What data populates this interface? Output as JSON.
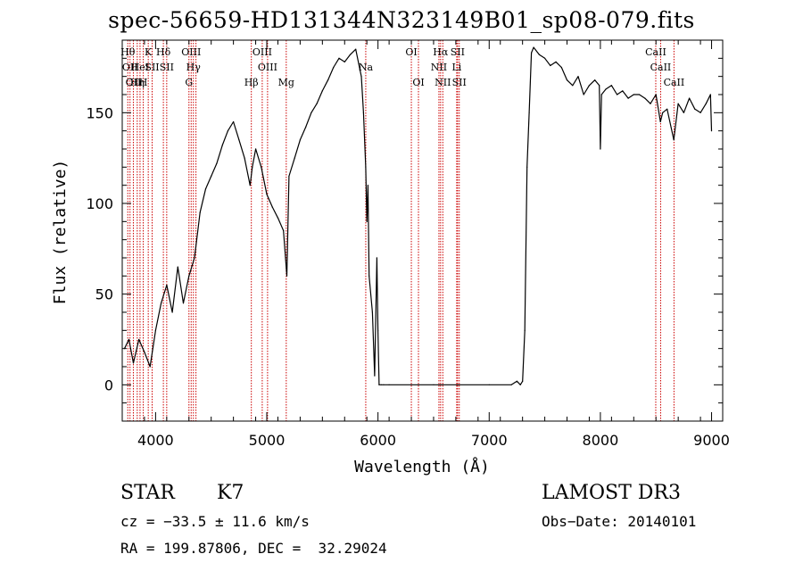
{
  "chart_data": {
    "type": "line",
    "title": "spec-56659-HD131344N323149B01_sp08-079.fits",
    "xlabel": "Wavelength (Å)",
    "ylabel": "Flux (relative)",
    "xlim": [
      3700,
      9100
    ],
    "ylim": [
      -20,
      190
    ],
    "xticks": [
      4000,
      5000,
      6000,
      7000,
      8000,
      9000
    ],
    "yticks": [
      0,
      50,
      100,
      150
    ],
    "series": [
      {
        "name": "flux",
        "x": [
          3720,
          3760,
          3800,
          3850,
          3900,
          3950,
          4000,
          4050,
          4100,
          4150,
          4200,
          4250,
          4300,
          4350,
          4400,
          4450,
          4500,
          4550,
          4600,
          4650,
          4700,
          4750,
          4800,
          4850,
          4870,
          4900,
          4950,
          5000,
          5050,
          5100,
          5150,
          5180,
          5200,
          5250,
          5300,
          5350,
          5400,
          5450,
          5500,
          5550,
          5600,
          5650,
          5700,
          5750,
          5800,
          5850,
          5870,
          5890,
          5900,
          5910,
          5920,
          5950,
          5970,
          5990,
          6000,
          6010,
          6030,
          6050,
          6100,
          6500,
          7000,
          7200,
          7250,
          7280,
          7300,
          7320,
          7340,
          7360,
          7380,
          7400,
          7450,
          7500,
          7550,
          7600,
          7650,
          7700,
          7750,
          7800,
          7850,
          7900,
          7950,
          7990,
          8000,
          8010,
          8050,
          8100,
          8150,
          8200,
          8250,
          8300,
          8350,
          8400,
          8450,
          8500,
          8540,
          8560,
          8600,
          8660,
          8700,
          8750,
          8800,
          8850,
          8900,
          8950,
          8990,
          9000
        ],
        "values": [
          20,
          25,
          12,
          25,
          18,
          10,
          30,
          45,
          55,
          40,
          65,
          45,
          60,
          70,
          95,
          108,
          115,
          122,
          132,
          140,
          145,
          135,
          125,
          110,
          120,
          130,
          120,
          105,
          98,
          92,
          85,
          60,
          115,
          125,
          135,
          142,
          150,
          155,
          162,
          168,
          175,
          180,
          178,
          182,
          185,
          170,
          150,
          120,
          90,
          110,
          60,
          40,
          5,
          70,
          30,
          0,
          0,
          0,
          0,
          0,
          0,
          0,
          2,
          0,
          2,
          30,
          120,
          150,
          183,
          186,
          182,
          180,
          176,
          178,
          175,
          168,
          165,
          170,
          160,
          165,
          168,
          165,
          130,
          160,
          163,
          165,
          160,
          162,
          158,
          160,
          160,
          158,
          155,
          160,
          145,
          150,
          152,
          135,
          155,
          150,
          158,
          152,
          150,
          155,
          160,
          140
        ]
      }
    ],
    "lines": [
      {
        "x": 3750,
        "row": 1,
        "label": "Hθ"
      },
      {
        "x": 3770,
        "row": 2,
        "label": "OII"
      },
      {
        "x": 3800,
        "row": 3,
        "label": "OII"
      },
      {
        "x": 3835,
        "row": 3,
        "label": "Hη"
      },
      {
        "x": 3860,
        "row": 2,
        "label": "HeI"
      },
      {
        "x": 3889,
        "row": 3,
        "label": "H"
      },
      {
        "x": 3934,
        "row": 1,
        "label": "K"
      },
      {
        "x": 3969,
        "row": 2,
        "label": "SII"
      },
      {
        "x": 4070,
        "row": 1,
        "label": "Hδ"
      },
      {
        "x": 4100,
        "row": 2,
        "label": "SII"
      },
      {
        "x": 4300,
        "row": 3,
        "label": "G"
      },
      {
        "x": 4320,
        "row": 1,
        "label": "OIII"
      },
      {
        "x": 4340,
        "row": 2,
        "label": "Hγ"
      },
      {
        "x": 4363,
        "row": 0,
        "label": ""
      },
      {
        "x": 4861,
        "row": 3,
        "label": "Hβ"
      },
      {
        "x": 4959,
        "row": 1,
        "label": "OIII"
      },
      {
        "x": 5007,
        "row": 2,
        "label": "OIII"
      },
      {
        "x": 5175,
        "row": 3,
        "label": "Mg"
      },
      {
        "x": 5890,
        "row": 2,
        "label": "Na"
      },
      {
        "x": 6300,
        "row": 1,
        "label": "OI"
      },
      {
        "x": 6364,
        "row": 3,
        "label": "OI"
      },
      {
        "x": 6548,
        "row": 2,
        "label": "NII"
      },
      {
        "x": 6563,
        "row": 1,
        "label": "Hα"
      },
      {
        "x": 6583,
        "row": 3,
        "label": "NII"
      },
      {
        "x": 6708,
        "row": 2,
        "label": "Li"
      },
      {
        "x": 6716,
        "row": 1,
        "label": "SII"
      },
      {
        "x": 6731,
        "row": 3,
        "label": "SII"
      },
      {
        "x": 8498,
        "row": 1,
        "label": "CaII"
      },
      {
        "x": 8542,
        "row": 2,
        "label": "CaII"
      },
      {
        "x": 8662,
        "row": 3,
        "label": "CaII"
      }
    ]
  },
  "info": {
    "class": "STAR",
    "subclass": "K7",
    "survey": "LAMOST DR3",
    "cz": "cz = −33.5 ± 11.6 km/s",
    "obs_date": "Obs−Date: 20140101",
    "radec": "RA = 199.87806, DEC =  32.29024"
  },
  "colors": {
    "line_marker": "#cc0000",
    "spectrum": "#000000"
  }
}
